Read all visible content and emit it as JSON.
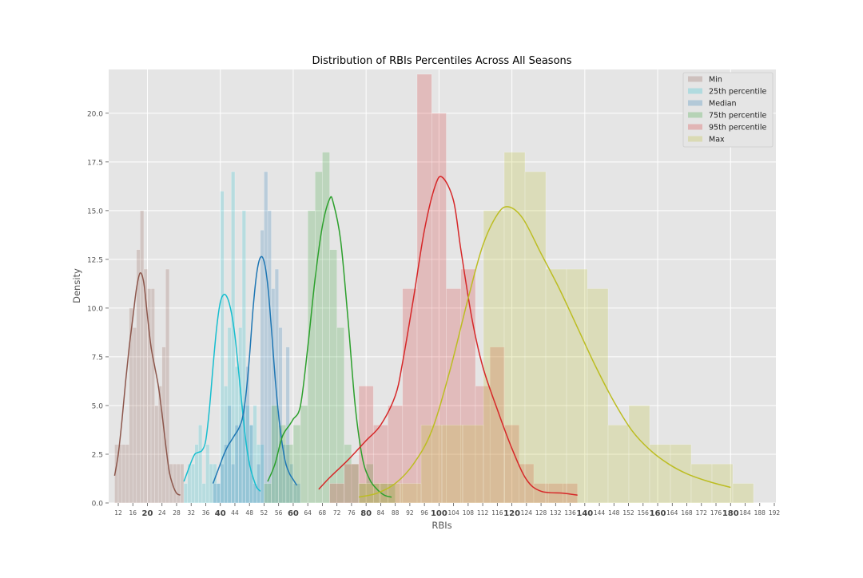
{
  "chart_data": {
    "type": "histogram",
    "title": "Distribution of RBIs Percentiles Across All Seasons",
    "xlabel": "RBIs",
    "ylabel": "Density",
    "xlim": [
      10,
      192
    ],
    "ylim": [
      0,
      22
    ],
    "grid": true,
    "legend_position": "top-right",
    "x_ticks": [
      12,
      16,
      20,
      24,
      28,
      32,
      36,
      40,
      44,
      48,
      52,
      56,
      60,
      64,
      68,
      72,
      76,
      80,
      84,
      88,
      92,
      96,
      100,
      104,
      108,
      112,
      116,
      120,
      124,
      128,
      132,
      136,
      140,
      144,
      148,
      152,
      156,
      160,
      164,
      168,
      172,
      176,
      180,
      184,
      188,
      192
    ],
    "x_ticks_bold": [
      20,
      40,
      60,
      80,
      100,
      120,
      140,
      160,
      180
    ],
    "y_ticks": [
      0.0,
      2.5,
      5.0,
      7.5,
      10.0,
      12.5,
      15.0,
      17.5,
      20.0
    ],
    "y_tick_labels": [
      "0.0",
      "2.5",
      "5.0",
      "7.5",
      "10.0",
      "12.5",
      "15.0",
      "17.5",
      "20.0"
    ],
    "series": [
      {
        "name": "Min",
        "color": "#8c564b",
        "bin_width": 1,
        "bins": [
          [
            11,
            3
          ],
          [
            12,
            3
          ],
          [
            13,
            3
          ],
          [
            14,
            3
          ],
          [
            15,
            10
          ],
          [
            16,
            9
          ],
          [
            17,
            13
          ],
          [
            18,
            15
          ],
          [
            19,
            12
          ],
          [
            20,
            11
          ],
          [
            21,
            11
          ],
          [
            22,
            5
          ],
          [
            23,
            6
          ],
          [
            24,
            8
          ],
          [
            25,
            12
          ],
          [
            26,
            2
          ],
          [
            27,
            2
          ],
          [
            28,
            2
          ],
          [
            29,
            2
          ]
        ],
        "kde": [
          [
            11,
            1.4
          ],
          [
            12,
            2.5
          ],
          [
            13,
            4.2
          ],
          [
            14,
            6.2
          ],
          [
            15,
            8.0
          ],
          [
            16,
            9.5
          ],
          [
            17,
            11.0
          ],
          [
            18,
            11.8
          ],
          [
            19,
            11.3
          ],
          [
            20,
            9.6
          ],
          [
            21,
            8.0
          ],
          [
            22,
            7.0
          ],
          [
            23,
            6.0
          ],
          [
            24,
            4.6
          ],
          [
            25,
            3.0
          ],
          [
            26,
            1.6
          ],
          [
            27,
            0.9
          ],
          [
            28,
            0.5
          ],
          [
            29,
            0.4
          ]
        ]
      },
      {
        "name": "25th percentile",
        "color": "#17becf",
        "bin_width": 1,
        "bins": [
          [
            30,
            1
          ],
          [
            31,
            2
          ],
          [
            32,
            2
          ],
          [
            33,
            3
          ],
          [
            34,
            4
          ],
          [
            35,
            1
          ],
          [
            36,
            3
          ],
          [
            37,
            2
          ],
          [
            38,
            2
          ],
          [
            39,
            1
          ],
          [
            40,
            16
          ],
          [
            41,
            6
          ],
          [
            42,
            9
          ],
          [
            43,
            17
          ],
          [
            44,
            7
          ],
          [
            45,
            9
          ],
          [
            46,
            15
          ],
          [
            47,
            5
          ],
          [
            48,
            4
          ],
          [
            49,
            5
          ],
          [
            50,
            3
          ],
          [
            51,
            3
          ]
        ],
        "kde": [
          [
            30,
            1.1
          ],
          [
            31,
            1.6
          ],
          [
            32,
            2.1
          ],
          [
            33,
            2.5
          ],
          [
            34,
            2.6
          ],
          [
            35,
            2.7
          ],
          [
            36,
            3.2
          ],
          [
            37,
            4.8
          ],
          [
            38,
            7.0
          ],
          [
            39,
            9.0
          ],
          [
            40,
            10.3
          ],
          [
            41,
            10.7
          ],
          [
            42,
            10.5
          ],
          [
            43,
            9.8
          ],
          [
            44,
            8.6
          ],
          [
            45,
            6.8
          ],
          [
            46,
            4.9
          ],
          [
            47,
            3.2
          ],
          [
            48,
            2.0
          ],
          [
            49,
            1.3
          ],
          [
            50,
            0.8
          ],
          [
            51,
            0.6
          ]
        ]
      },
      {
        "name": "Median",
        "color": "#1f77b4",
        "bin_width": 1,
        "bins": [
          [
            38,
            1
          ],
          [
            39,
            1
          ],
          [
            40,
            2
          ],
          [
            41,
            3
          ],
          [
            42,
            5
          ],
          [
            43,
            2
          ],
          [
            44,
            4
          ],
          [
            45,
            4
          ],
          [
            46,
            5
          ],
          [
            47,
            7
          ],
          [
            48,
            4
          ],
          [
            49,
            1
          ],
          [
            50,
            2
          ],
          [
            51,
            14
          ],
          [
            52,
            17
          ],
          [
            53,
            15
          ],
          [
            54,
            11
          ],
          [
            55,
            12
          ],
          [
            56,
            9
          ],
          [
            57,
            3
          ],
          [
            58,
            8
          ],
          [
            59,
            2
          ],
          [
            60,
            1
          ],
          [
            61,
            1
          ]
        ],
        "kde": [
          [
            38,
            1.0
          ],
          [
            39,
            1.5
          ],
          [
            40,
            2.0
          ],
          [
            41,
            2.5
          ],
          [
            42,
            2.9
          ],
          [
            43,
            3.2
          ],
          [
            44,
            3.5
          ],
          [
            45,
            3.8
          ],
          [
            46,
            4.3
          ],
          [
            47,
            5.5
          ],
          [
            48,
            7.5
          ],
          [
            49,
            10.0
          ],
          [
            50,
            11.8
          ],
          [
            51,
            12.6
          ],
          [
            52,
            12.4
          ],
          [
            53,
            11.2
          ],
          [
            54,
            9.0
          ],
          [
            55,
            6.5
          ],
          [
            56,
            4.5
          ],
          [
            57,
            3.0
          ],
          [
            58,
            2.0
          ],
          [
            59,
            1.5
          ],
          [
            60,
            1.2
          ],
          [
            61,
            0.9
          ]
        ]
      },
      {
        "name": "75th percentile",
        "color": "#2ca02c",
        "bin_width": 2,
        "bins": [
          [
            52,
            1
          ],
          [
            54,
            5
          ],
          [
            56,
            4
          ],
          [
            58,
            3
          ],
          [
            60,
            4
          ],
          [
            62,
            5
          ],
          [
            64,
            15
          ],
          [
            66,
            17
          ],
          [
            68,
            18
          ],
          [
            70,
            13
          ],
          [
            72,
            9
          ],
          [
            74,
            3
          ],
          [
            76,
            2
          ],
          [
            78,
            1
          ],
          [
            80,
            2
          ],
          [
            82,
            1
          ],
          [
            84,
            1
          ],
          [
            86,
            1
          ]
        ],
        "kde": [
          [
            53,
            1.1
          ],
          [
            55,
            2.0
          ],
          [
            57,
            3.4
          ],
          [
            59,
            4.0
          ],
          [
            60,
            4.3
          ],
          [
            62,
            5.0
          ],
          [
            64,
            8.0
          ],
          [
            66,
            11.5
          ],
          [
            68,
            14.2
          ],
          [
            70,
            15.6
          ],
          [
            71,
            15.4
          ],
          [
            73,
            13.5
          ],
          [
            75,
            9.5
          ],
          [
            77,
            5.0
          ],
          [
            79,
            2.3
          ],
          [
            81,
            1.2
          ],
          [
            83,
            0.7
          ],
          [
            85,
            0.4
          ],
          [
            87,
            0.3
          ]
        ]
      },
      {
        "name": "95th percentile",
        "color": "#d62728",
        "bin_width": 4,
        "bins": [
          [
            70,
            1
          ],
          [
            74,
            2
          ],
          [
            78,
            6
          ],
          [
            82,
            4
          ],
          [
            86,
            5
          ],
          [
            90,
            11
          ],
          [
            94,
            22
          ],
          [
            98,
            20
          ],
          [
            102,
            11
          ],
          [
            106,
            12
          ],
          [
            110,
            6
          ],
          [
            114,
            8
          ],
          [
            118,
            4
          ],
          [
            122,
            2
          ],
          [
            126,
            1
          ],
          [
            130,
            1
          ],
          [
            134,
            1
          ]
        ],
        "kde": [
          [
            67,
            0.7
          ],
          [
            70,
            1.3
          ],
          [
            75,
            2.2
          ],
          [
            80,
            3.2
          ],
          [
            84,
            4.0
          ],
          [
            88,
            5.5
          ],
          [
            90,
            7.2
          ],
          [
            93,
            10.5
          ],
          [
            96,
            14.0
          ],
          [
            99,
            16.3
          ],
          [
            101,
            16.7
          ],
          [
            104,
            15.5
          ],
          [
            106,
            13.0
          ],
          [
            109,
            9.5
          ],
          [
            112,
            7.0
          ],
          [
            116,
            4.8
          ],
          [
            120,
            2.8
          ],
          [
            124,
            1.2
          ],
          [
            128,
            0.6
          ],
          [
            134,
            0.5
          ],
          [
            138,
            0.4
          ]
        ]
      },
      {
        "name": "Max",
        "color": "#bcbd22",
        "bin_width": 5.7,
        "bins": [
          [
            78,
            1
          ],
          [
            83.7,
            1
          ],
          [
            89.4,
            1
          ],
          [
            95.1,
            4
          ],
          [
            100.8,
            4
          ],
          [
            106.5,
            4
          ],
          [
            112.2,
            15
          ],
          [
            117.9,
            18
          ],
          [
            123.6,
            17
          ],
          [
            129.3,
            12
          ],
          [
            135.0,
            12
          ],
          [
            140.7,
            11
          ],
          [
            146.4,
            4
          ],
          [
            152.1,
            5
          ],
          [
            157.8,
            3
          ],
          [
            163.5,
            3
          ],
          [
            169.2,
            2
          ],
          [
            174.9,
            2
          ],
          [
            180.6,
            1
          ]
        ],
        "kde": [
          [
            78,
            0.3
          ],
          [
            83,
            0.5
          ],
          [
            88,
            1.0
          ],
          [
            93,
            2.0
          ],
          [
            98,
            3.7
          ],
          [
            103,
            6.8
          ],
          [
            108,
            10.5
          ],
          [
            112,
            13.2
          ],
          [
            116,
            14.8
          ],
          [
            119,
            15.2
          ],
          [
            123,
            14.6
          ],
          [
            128,
            12.8
          ],
          [
            133,
            11.0
          ],
          [
            138,
            9.0
          ],
          [
            143,
            7.0
          ],
          [
            148,
            5.2
          ],
          [
            153,
            3.7
          ],
          [
            158,
            2.7
          ],
          [
            163,
            2.0
          ],
          [
            168,
            1.5
          ],
          [
            174,
            1.1
          ],
          [
            180,
            0.8
          ]
        ]
      }
    ]
  }
}
